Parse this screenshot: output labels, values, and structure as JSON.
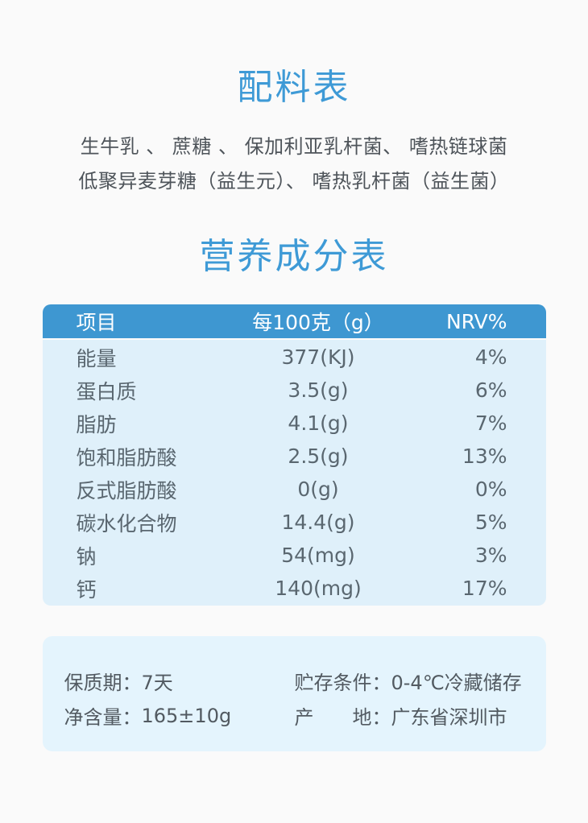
{
  "colors": {
    "page_background": "#fafafa",
    "accent_blue": "#3e9ad6",
    "table_header_blue": "#3e97d1",
    "table_body_blue": "#dff0fa",
    "info_box_blue": "#e4f4fd",
    "text_gray": "#5a6770"
  },
  "ingredients": {
    "title": "配料表",
    "line1": "生牛乳 、 蔗糖 、 保加利亚乳杆菌、 嗜热链球菌",
    "line2": "低聚异麦芽糖（益生元）、 嗜热乳杆菌（益生菌）"
  },
  "nutrition": {
    "title": "营养成分表",
    "columns": [
      "项目",
      "每100克（g）",
      "NRV%"
    ],
    "rows": [
      {
        "item": "能量",
        "per100g": "377(KJ)",
        "nrv": "4%"
      },
      {
        "item": "蛋白质",
        "per100g": "3.5(g)",
        "nrv": "6%"
      },
      {
        "item": "脂肪",
        "per100g": "4.1(g)",
        "nrv": "7%"
      },
      {
        "item": "饱和脂肪酸",
        "per100g": "2.5(g)",
        "nrv": "13%"
      },
      {
        "item": "反式脂肪酸",
        "per100g": "0(g)",
        "nrv": "0%"
      },
      {
        "item": "碳水化合物",
        "per100g": "14.4(g)",
        "nrv": "5%"
      },
      {
        "item": "钠",
        "per100g": "54(mg)",
        "nrv": "3%"
      },
      {
        "item": "钙",
        "per100g": "140(mg)",
        "nrv": "17%"
      }
    ]
  },
  "info": {
    "shelf_life": {
      "label": "保质期：",
      "value": "7天"
    },
    "storage": {
      "label": "贮存条件：",
      "value": "0-4℃冷藏储存"
    },
    "net_content": {
      "label": "净含量：",
      "value": "165±10g"
    },
    "origin": {
      "label": "产　　地：",
      "value": "广东省深圳市"
    }
  }
}
